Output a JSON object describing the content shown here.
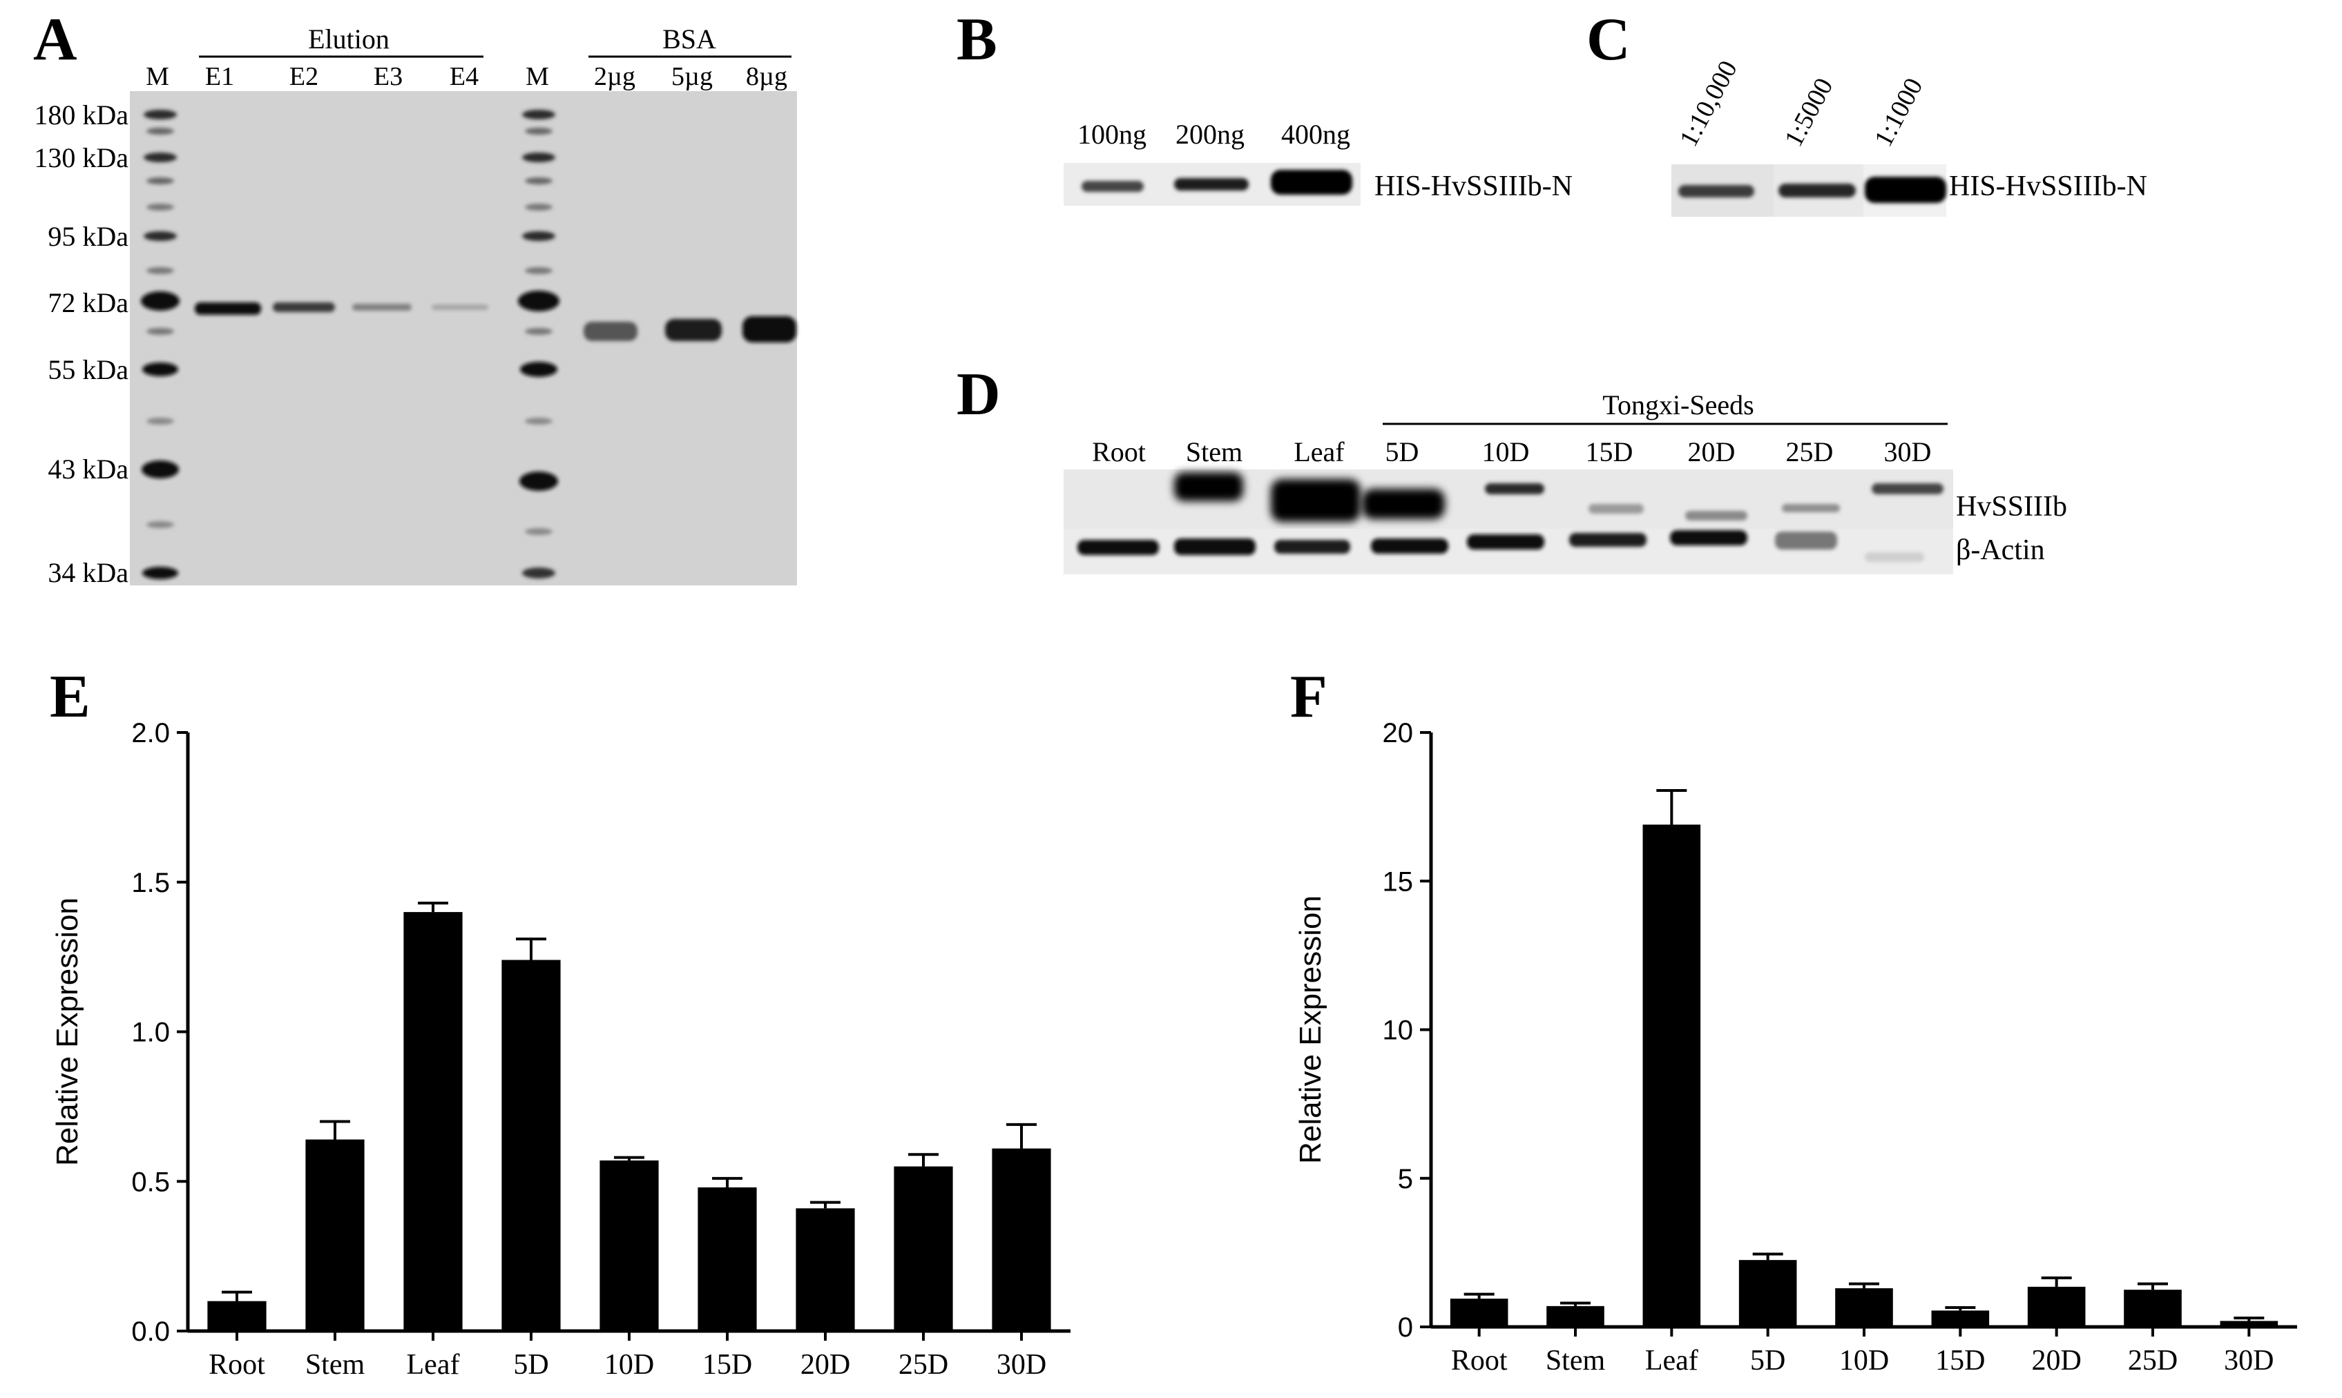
{
  "panels": {
    "A": {
      "letter": "A",
      "group_elution": "Elution",
      "group_bsa": "BSA",
      "lanes": [
        "M",
        "E1",
        "E2",
        "E3",
        "E4",
        "M",
        "2µg",
        "5µg",
        "8µg"
      ],
      "markers": [
        "180 kDa",
        "130 kDa",
        "95 kDa",
        "72 kDa",
        "55 kDa",
        "43 kDa",
        "34 kDa"
      ]
    },
    "B": {
      "letter": "B",
      "lanes": [
        "100ng",
        "200ng",
        "400ng"
      ],
      "band_label": "HIS-HvSSIIIb-N"
    },
    "C": {
      "letter": "C",
      "lanes": [
        "1:10,000",
        "1:5000",
        "1:1000"
      ],
      "band_label": "HIS-HvSSIIIb-N"
    },
    "D": {
      "letter": "D",
      "group": "Tongxi-Seeds",
      "lanes": [
        "Root",
        "Stem",
        "Leaf",
        "5D",
        "10D",
        "15D",
        "20D",
        "25D",
        "30D"
      ],
      "row_labels": [
        "HvSSIIIb",
        "β-Actin"
      ]
    },
    "E": {
      "letter": "E"
    },
    "F": {
      "letter": "F"
    }
  },
  "chart_data": [
    {
      "panel": "E",
      "type": "bar",
      "categories": [
        "Root",
        "Stem",
        "Leaf",
        "5D",
        "10D",
        "15D",
        "20D",
        "25D",
        "30D"
      ],
      "values": [
        0.1,
        0.64,
        1.4,
        1.24,
        0.57,
        0.48,
        0.41,
        0.55,
        0.61
      ],
      "errors": [
        0.03,
        0.06,
        0.03,
        0.07,
        0.01,
        0.03,
        0.02,
        0.04,
        0.08
      ],
      "ylabel": "Relative Expression",
      "ylim": [
        0,
        2.0
      ],
      "yticks": [
        "0.0",
        "0.5",
        "1.0",
        "1.5",
        "2.0"
      ],
      "bar_color": "#000000",
      "grid": false
    },
    {
      "panel": "F",
      "type": "bar",
      "categories": [
        "Root",
        "Stem",
        "Leaf",
        "5D",
        "10D",
        "15D",
        "20D",
        "25D",
        "30D"
      ],
      "values": [
        0.95,
        0.7,
        16.9,
        2.25,
        1.3,
        0.55,
        1.35,
        1.25,
        0.2
      ],
      "errors": [
        0.15,
        0.1,
        1.15,
        0.2,
        0.15,
        0.1,
        0.3,
        0.2,
        0.1
      ],
      "ylabel": "Relative Expression",
      "ylim": [
        0,
        20
      ],
      "yticks": [
        "0",
        "5",
        "10",
        "15",
        "20"
      ],
      "bar_color": "#000000",
      "grid": false
    }
  ]
}
